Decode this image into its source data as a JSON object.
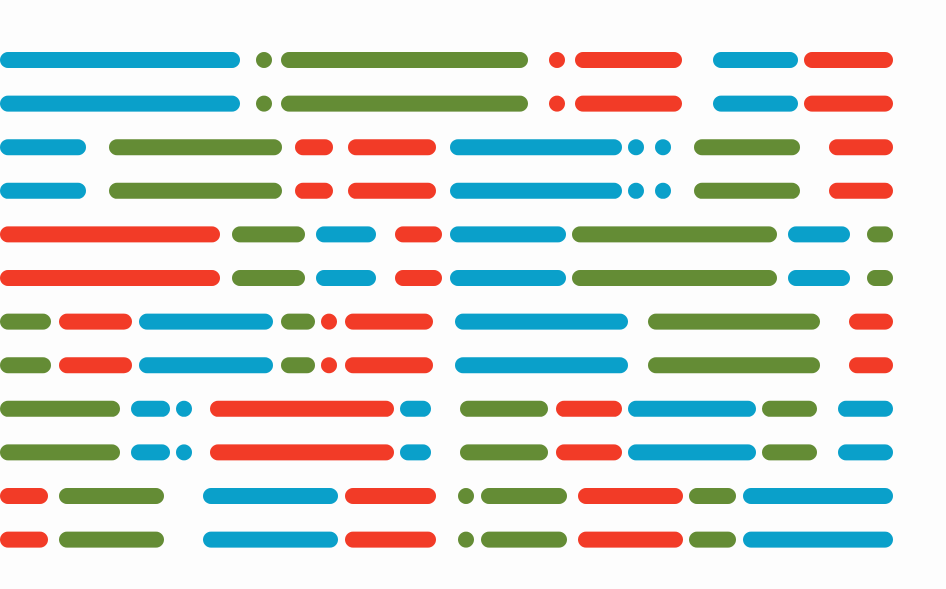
{
  "palette": {
    "background": "#fdfdfd",
    "blue": "#0aa0ca",
    "green": "#648c35",
    "red": "#f23b27"
  },
  "rows": [
    {
      "segments": [
        {
          "c": "blue",
          "w": 240
        },
        {
          "c": "green",
          "w": 16
        },
        {
          "c": "green",
          "w": 247
        },
        {
          "c": "red",
          "w": 16
        },
        {
          "c": "red",
          "w": 107
        },
        {
          "c": "blue",
          "w": 85
        },
        {
          "c": "red",
          "w": 89
        }
      ]
    },
    {
      "segments": [
        {
          "c": "blue",
          "w": 240
        },
        {
          "c": "green",
          "w": 16
        },
        {
          "c": "green",
          "w": 247
        },
        {
          "c": "red",
          "w": 16
        },
        {
          "c": "red",
          "w": 107
        },
        {
          "c": "blue",
          "w": 85
        },
        {
          "c": "red",
          "w": 89
        }
      ]
    },
    {
      "segments": [
        {
          "c": "blue",
          "w": 86
        },
        {
          "c": "green",
          "w": 173
        },
        {
          "c": "red",
          "w": 38
        },
        {
          "c": "red",
          "w": 88
        },
        {
          "c": "blue",
          "w": 172
        },
        {
          "c": "blue",
          "w": 16
        },
        {
          "c": "blue",
          "w": 16
        },
        {
          "c": "green",
          "w": 106
        },
        {
          "c": "red",
          "w": 64
        }
      ]
    },
    {
      "segments": [
        {
          "c": "blue",
          "w": 86
        },
        {
          "c": "green",
          "w": 173
        },
        {
          "c": "red",
          "w": 38
        },
        {
          "c": "red",
          "w": 88
        },
        {
          "c": "blue",
          "w": 172
        },
        {
          "c": "blue",
          "w": 16
        },
        {
          "c": "blue",
          "w": 16
        },
        {
          "c": "green",
          "w": 106
        },
        {
          "c": "red",
          "w": 64
        }
      ]
    },
    {
      "segments": [
        {
          "c": "red",
          "w": 220
        },
        {
          "c": "green",
          "w": 73
        },
        {
          "c": "blue",
          "w": 60
        },
        {
          "c": "red",
          "w": 47
        },
        {
          "c": "blue",
          "w": 116
        },
        {
          "c": "green",
          "w": 205
        },
        {
          "c": "blue",
          "w": 62
        },
        {
          "c": "green",
          "w": 26
        }
      ]
    },
    {
      "segments": [
        {
          "c": "red",
          "w": 220
        },
        {
          "c": "green",
          "w": 73
        },
        {
          "c": "blue",
          "w": 60
        },
        {
          "c": "red",
          "w": 47
        },
        {
          "c": "blue",
          "w": 116
        },
        {
          "c": "green",
          "w": 205
        },
        {
          "c": "blue",
          "w": 62
        },
        {
          "c": "green",
          "w": 26
        }
      ]
    },
    {
      "segments": [
        {
          "c": "green",
          "w": 51
        },
        {
          "c": "red",
          "w": 73
        },
        {
          "c": "blue",
          "w": 134
        },
        {
          "c": "green",
          "w": 34
        },
        {
          "c": "red",
          "w": 16
        },
        {
          "c": "red",
          "w": 88
        },
        {
          "c": "blue",
          "w": 173
        },
        {
          "c": "green",
          "w": 172
        },
        {
          "c": "red",
          "w": 44
        }
      ]
    },
    {
      "segments": [
        {
          "c": "green",
          "w": 51
        },
        {
          "c": "red",
          "w": 73
        },
        {
          "c": "blue",
          "w": 134
        },
        {
          "c": "green",
          "w": 34
        },
        {
          "c": "red",
          "w": 16
        },
        {
          "c": "red",
          "w": 88
        },
        {
          "c": "blue",
          "w": 173
        },
        {
          "c": "green",
          "w": 172
        },
        {
          "c": "red",
          "w": 44
        }
      ]
    },
    {
      "segments": [
        {
          "c": "green",
          "w": 120
        },
        {
          "c": "blue",
          "w": 39
        },
        {
          "c": "blue",
          "w": 16
        },
        {
          "c": "red",
          "w": 184
        },
        {
          "c": "blue",
          "w": 31
        },
        {
          "c": "green",
          "w": 88
        },
        {
          "c": "red",
          "w": 66
        },
        {
          "c": "blue",
          "w": 128
        },
        {
          "c": "green",
          "w": 55
        },
        {
          "c": "blue",
          "w": 55
        }
      ]
    },
    {
      "segments": [
        {
          "c": "green",
          "w": 120
        },
        {
          "c": "blue",
          "w": 39
        },
        {
          "c": "blue",
          "w": 16
        },
        {
          "c": "red",
          "w": 184
        },
        {
          "c": "blue",
          "w": 31
        },
        {
          "c": "green",
          "w": 88
        },
        {
          "c": "red",
          "w": 66
        },
        {
          "c": "blue",
          "w": 128
        },
        {
          "c": "green",
          "w": 55
        },
        {
          "c": "blue",
          "w": 55
        }
      ]
    },
    {
      "segments": [
        {
          "c": "red",
          "w": 48
        },
        {
          "c": "green",
          "w": 105
        },
        {
          "c": "blue",
          "w": 135
        },
        {
          "c": "red",
          "w": 91
        },
        {
          "c": "green",
          "w": 16
        },
        {
          "c": "green",
          "w": 86
        },
        {
          "c": "red",
          "w": 105
        },
        {
          "c": "green",
          "w": 47
        },
        {
          "c": "blue",
          "w": 150
        }
      ]
    },
    {
      "segments": [
        {
          "c": "red",
          "w": 48
        },
        {
          "c": "green",
          "w": 105
        },
        {
          "c": "blue",
          "w": 135
        },
        {
          "c": "red",
          "w": 91
        },
        {
          "c": "green",
          "w": 16
        },
        {
          "c": "green",
          "w": 86
        },
        {
          "c": "red",
          "w": 105
        },
        {
          "c": "green",
          "w": 47
        },
        {
          "c": "blue",
          "w": 150
        }
      ]
    }
  ]
}
